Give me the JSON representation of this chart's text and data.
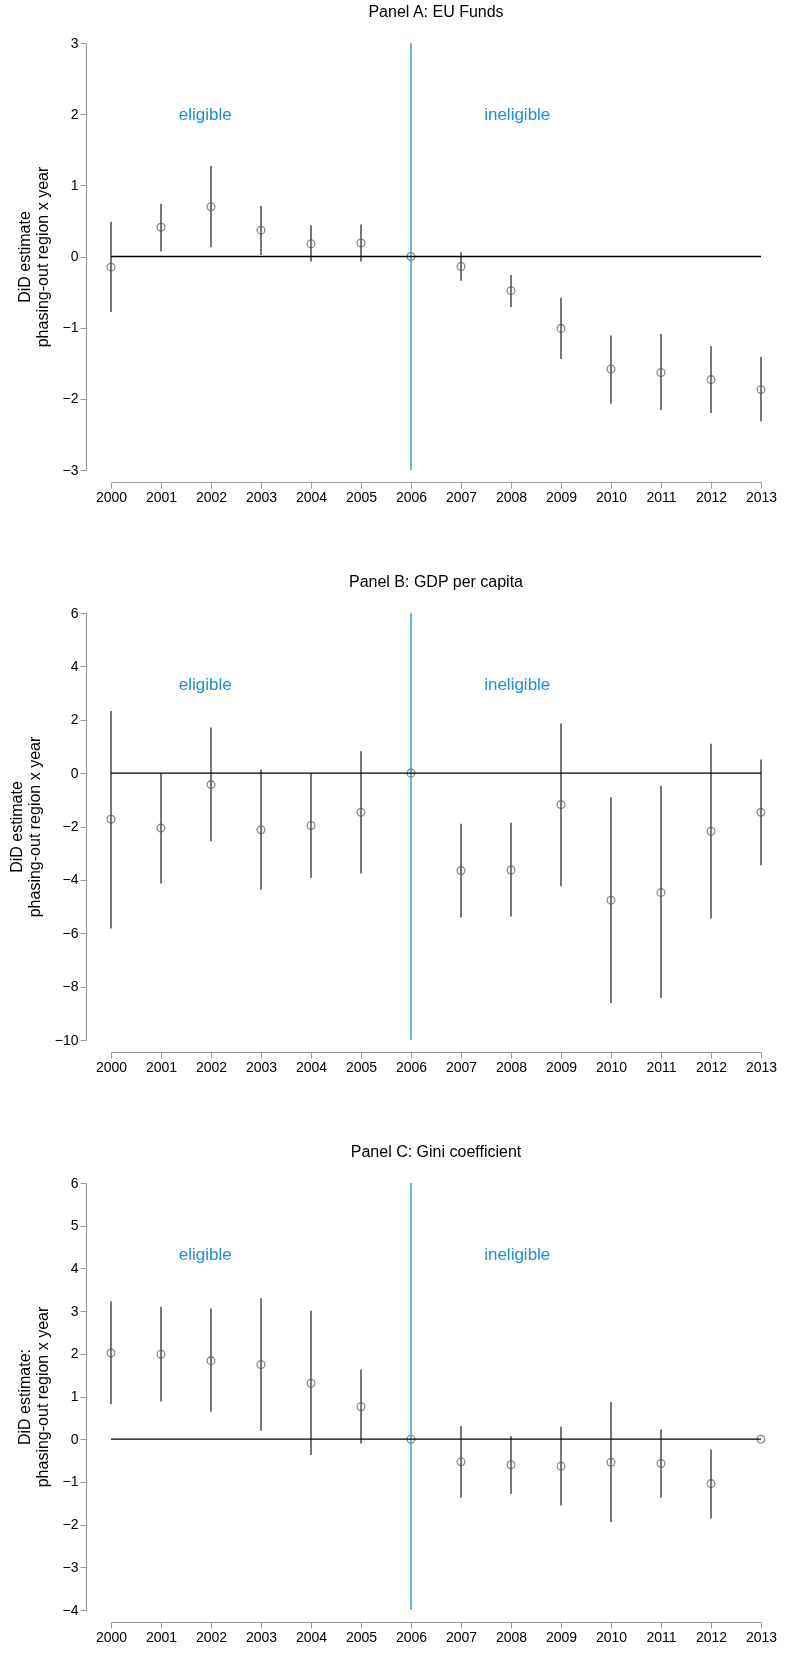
{
  "chart_data": [
    {
      "type": "scatter",
      "title": "Panel A: EU Funds",
      "ylabel": "DiD estimate\nphasing-out region x year",
      "x": [
        2000,
        2001,
        2002,
        2003,
        2004,
        2005,
        2006,
        2007,
        2008,
        2009,
        2010,
        2011,
        2012,
        2013
      ],
      "values": [
        -0.15,
        0.41,
        0.7,
        0.37,
        0.18,
        0.19,
        0,
        -0.14,
        -0.48,
        -1.01,
        -1.58,
        -1.63,
        -1.73,
        -1.87
      ],
      "errors": [
        [
          -0.78,
          0.49
        ],
        [
          0.07,
          0.74
        ],
        [
          0.13,
          1.27
        ],
        [
          0.02,
          0.71
        ],
        [
          -0.07,
          0.44
        ],
        [
          -0.07,
          0.45
        ],
        null,
        [
          -0.34,
          0.06
        ],
        [
          -0.71,
          -0.26
        ],
        [
          -1.44,
          -0.58
        ],
        [
          -2.07,
          -1.11
        ],
        [
          -2.16,
          -1.09
        ],
        [
          -2.2,
          -1.26
        ],
        [
          -2.32,
          -1.41
        ]
      ],
      "color": "#555555",
      "marker": "circle",
      "xlim": [
        2000,
        2013
      ],
      "xticks": [
        2000,
        2001,
        2002,
        2003,
        2004,
        2005,
        2006,
        2007,
        2008,
        2009,
        2010,
        2011,
        2012,
        2013
      ],
      "ylim": [
        -3,
        3
      ],
      "yticks": [
        -3,
        -2,
        -1,
        0,
        1,
        2,
        3
      ],
      "grid": false,
      "ref_lines": [
        {
          "axis": "x",
          "value": 2006,
          "color": "#1f8fd0"
        },
        {
          "axis": "y",
          "value": 0,
          "color": "#000000"
        }
      ],
      "annotations": [
        "eligible",
        "ineligible"
      ]
    },
    {
      "type": "scatter",
      "title": "Panel B: GDP per capita",
      "ylabel": "DiD estimate\nphasing-out region x year",
      "x": [
        2000,
        2001,
        2002,
        2003,
        2004,
        2005,
        2006,
        2007,
        2008,
        2009,
        2010,
        2011,
        2012,
        2013
      ],
      "values": [
        -1.73,
        -2.06,
        -0.43,
        -2.12,
        -1.96,
        -1.47,
        0,
        -3.65,
        -3.63,
        -1.18,
        -4.76,
        -4.47,
        -2.18,
        -1.47
      ],
      "errors": [
        [
          -5.82,
          2.33
        ],
        [
          -4.14,
          0
        ],
        [
          -2.55,
          1.71
        ],
        [
          -4.37,
          0.14
        ],
        [
          -3.92,
          0
        ],
        [
          -3.76,
          0.82
        ],
        null,
        [
          -5.41,
          -1.9
        ],
        [
          -5.37,
          -1.86
        ],
        [
          -4.24,
          1.86
        ],
        [
          -8.61,
          -0.9
        ],
        [
          -8.43,
          -0.47
        ],
        [
          -5.45,
          1.1
        ],
        [
          -3.45,
          0.51
        ]
      ],
      "color": "#555555",
      "marker": "circle",
      "xlim": [
        2000,
        2013
      ],
      "xticks": [
        2000,
        2001,
        2002,
        2003,
        2004,
        2005,
        2006,
        2007,
        2008,
        2009,
        2010,
        2011,
        2012,
        2013
      ],
      "ylim": [
        -10,
        6
      ],
      "yticks": [
        -10,
        -8,
        -6,
        -4,
        -2,
        0,
        2,
        4,
        6
      ],
      "grid": false,
      "ref_lines": [
        {
          "axis": "x",
          "value": 2006,
          "color": "#1f8fd0"
        },
        {
          "axis": "y",
          "value": 0,
          "color": "#000000"
        }
      ],
      "annotations": [
        "eligible",
        "ineligible"
      ]
    },
    {
      "type": "scatter",
      "title": "Panel C: Gini coefficient",
      "ylabel": "DiD estimate:\nphasing-out region x year",
      "x": [
        2000,
        2001,
        2002,
        2003,
        2004,
        2005,
        2006,
        2007,
        2008,
        2009,
        2010,
        2011,
        2012,
        2013
      ],
      "values": [
        2.02,
        1.99,
        1.84,
        1.75,
        1.31,
        0.76,
        0,
        -0.53,
        -0.6,
        -0.63,
        -0.54,
        -0.57,
        -1.04,
        0
      ],
      "errors": [
        [
          0.82,
          3.23
        ],
        [
          0.88,
          3.1
        ],
        [
          0.64,
          3.06
        ],
        [
          0.2,
          3.3
        ],
        [
          -0.37,
          3.01
        ],
        [
          -0.1,
          1.63
        ],
        null,
        [
          -1.37,
          0.31
        ],
        [
          -1.28,
          0.07
        ],
        [
          -1.55,
          0.3
        ],
        [
          -1.94,
          0.87
        ],
        [
          -1.37,
          0.23
        ],
        [
          -1.86,
          -0.24
        ],
        null
      ],
      "color": "#555555",
      "marker": "circle",
      "xlim": [
        2000,
        2013
      ],
      "xticks": [
        2000,
        2001,
        2002,
        2003,
        2004,
        2005,
        2006,
        2007,
        2008,
        2009,
        2010,
        2011,
        2012,
        2013
      ],
      "ylim": [
        -4,
        6
      ],
      "yticks": [
        -4,
        -3,
        -2,
        -1,
        0,
        1,
        2,
        3,
        4,
        5,
        6
      ],
      "grid": false,
      "ref_lines": [
        {
          "axis": "x",
          "value": 2006,
          "color": "#1f8fd0"
        },
        {
          "axis": "y",
          "value": 0,
          "color": "#000000"
        }
      ],
      "annotations": [
        "eligible",
        "ineligible"
      ]
    }
  ]
}
